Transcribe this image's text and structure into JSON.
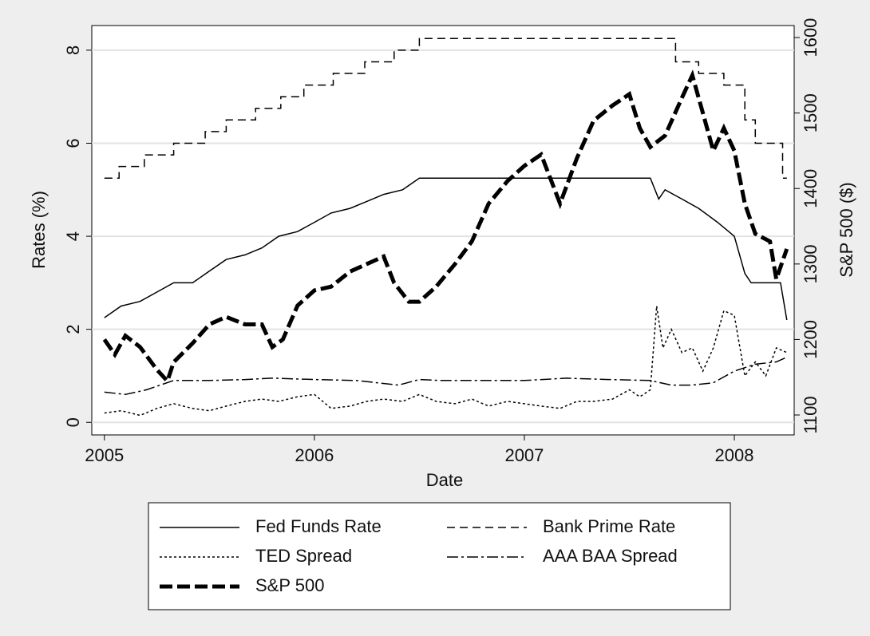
{
  "chart_data": {
    "type": "line",
    "x_label": "Date",
    "y_label": "Rates (%)",
    "y2_label": "S&P 500 ($)",
    "xlim": [
      2004.94,
      2008.285
    ],
    "xticks": [
      2005,
      2006,
      2007,
      2008
    ],
    "ylim": [
      -0.27,
      8.53
    ],
    "yticks": [
      0,
      2,
      4,
      6,
      8
    ],
    "y2lim": [
      1073.6,
      1615.9
    ],
    "y2ticks": [
      1100,
      1200,
      1300,
      1400,
      1500,
      1600
    ],
    "grid": true,
    "series": [
      {
        "name": "Fed Funds Rate",
        "color": "#000000",
        "style": "solid",
        "width": 1.5,
        "x": [
          2005.0,
          2005.08,
          2005.17,
          2005.25,
          2005.33,
          2005.42,
          2005.5,
          2005.58,
          2005.67,
          2005.75,
          2005.83,
          2005.92,
          2006.0,
          2006.08,
          2006.17,
          2006.25,
          2006.33,
          2006.42,
          2006.5,
          2006.67,
          2006.83,
          2007.0,
          2007.17,
          2007.33,
          2007.5,
          2007.6,
          2007.64,
          2007.67,
          2007.75,
          2007.83,
          2007.92,
          2008.0,
          2008.05,
          2008.08,
          2008.17,
          2008.22,
          2008.25
        ],
        "values": [
          2.25,
          2.5,
          2.6,
          2.8,
          3.0,
          3.0,
          3.25,
          3.5,
          3.6,
          3.75,
          4.0,
          4.1,
          4.3,
          4.5,
          4.6,
          4.75,
          4.9,
          5.0,
          5.25,
          5.25,
          5.25,
          5.25,
          5.25,
          5.25,
          5.25,
          5.25,
          4.8,
          5.0,
          4.8,
          4.6,
          4.3,
          4.0,
          3.2,
          3.0,
          3.0,
          3.0,
          2.2
        ]
      },
      {
        "name": "Bank Prime Rate",
        "color": "#000000",
        "style": "dash",
        "width": 1.5,
        "x": [
          2005.0,
          2005.07,
          2005.07,
          2005.19,
          2005.19,
          2005.33,
          2005.33,
          2005.48,
          2005.48,
          2005.58,
          2005.58,
          2005.72,
          2005.72,
          2005.84,
          2005.84,
          2005.95,
          2005.95,
          2006.09,
          2006.09,
          2006.24,
          2006.24,
          2006.38,
          2006.38,
          2006.5,
          2006.5,
          2007.72,
          2007.72,
          2007.83,
          2007.83,
          2007.95,
          2007.95,
          2008.05,
          2008.05,
          2008.1,
          2008.1,
          2008.23,
          2008.23,
          2008.25
        ],
        "values": [
          5.25,
          5.25,
          5.5,
          5.5,
          5.75,
          5.75,
          6.0,
          6.0,
          6.25,
          6.25,
          6.5,
          6.5,
          6.75,
          6.75,
          7.0,
          7.0,
          7.25,
          7.25,
          7.5,
          7.5,
          7.75,
          7.75,
          8.0,
          8.0,
          8.25,
          8.25,
          7.75,
          7.75,
          7.5,
          7.5,
          7.25,
          7.25,
          6.5,
          6.5,
          6.0,
          6.0,
          5.25,
          5.25
        ]
      },
      {
        "name": "TED Spread",
        "color": "#000000",
        "style": "dot",
        "width": 1.5,
        "x": [
          2005.0,
          2005.08,
          2005.17,
          2005.25,
          2005.33,
          2005.42,
          2005.5,
          2005.58,
          2005.67,
          2005.75,
          2005.83,
          2005.92,
          2006.0,
          2006.08,
          2006.17,
          2006.25,
          2006.33,
          2006.42,
          2006.5,
          2006.58,
          2006.67,
          2006.75,
          2006.83,
          2006.92,
          2007.0,
          2007.08,
          2007.17,
          2007.25,
          2007.33,
          2007.42,
          2007.5,
          2007.55,
          2007.6,
          2007.63,
          2007.66,
          2007.7,
          2007.75,
          2007.8,
          2007.85,
          2007.9,
          2007.95,
          2008.0,
          2008.05,
          2008.1,
          2008.15,
          2008.2,
          2008.25
        ],
        "values": [
          0.2,
          0.25,
          0.15,
          0.3,
          0.4,
          0.3,
          0.25,
          0.35,
          0.45,
          0.5,
          0.45,
          0.55,
          0.6,
          0.3,
          0.35,
          0.45,
          0.5,
          0.45,
          0.6,
          0.45,
          0.4,
          0.5,
          0.35,
          0.45,
          0.4,
          0.35,
          0.3,
          0.45,
          0.45,
          0.5,
          0.7,
          0.55,
          0.7,
          2.5,
          1.6,
          2.0,
          1.5,
          1.6,
          1.1,
          1.6,
          2.4,
          2.3,
          1.0,
          1.3,
          1.0,
          1.6,
          1.5
        ]
      },
      {
        "name": "AAA BAA  Spread",
        "color": "#000000",
        "style": "dash-dot",
        "width": 1.5,
        "x": [
          2005.0,
          2005.1,
          2005.2,
          2005.33,
          2005.5,
          2005.67,
          2005.8,
          2006.0,
          2006.2,
          2006.4,
          2006.5,
          2006.6,
          2006.8,
          2007.0,
          2007.2,
          2007.4,
          2007.6,
          2007.7,
          2007.8,
          2007.9,
          2008.0,
          2008.1,
          2008.2,
          2008.25
        ],
        "values": [
          0.65,
          0.6,
          0.7,
          0.9,
          0.9,
          0.92,
          0.95,
          0.92,
          0.9,
          0.8,
          0.92,
          0.9,
          0.9,
          0.9,
          0.95,
          0.92,
          0.9,
          0.8,
          0.8,
          0.85,
          1.1,
          1.25,
          1.3,
          1.4
        ]
      },
      {
        "name": "S&P 500",
        "color": "#000000",
        "style": "long-dash",
        "width": 5,
        "axis": "y2",
        "x": [
          2005.0,
          2005.05,
          2005.1,
          2005.17,
          2005.25,
          2005.3,
          2005.33,
          2005.42,
          2005.5,
          2005.58,
          2005.67,
          2005.75,
          2005.8,
          2005.85,
          2005.92,
          2006.0,
          2006.08,
          2006.17,
          2006.25,
          2006.33,
          2006.38,
          2006.45,
          2006.5,
          2006.58,
          2006.67,
          2006.75,
          2006.83,
          2006.92,
          2007.0,
          2007.08,
          2007.17,
          2007.25,
          2007.33,
          2007.42,
          2007.5,
          2007.55,
          2007.6,
          2007.67,
          2007.75,
          2007.8,
          2007.85,
          2007.9,
          2007.95,
          2008.0,
          2008.05,
          2008.1,
          2008.17,
          2008.2,
          2008.25
        ],
        "values": [
          1200,
          1180,
          1205,
          1190,
          1160,
          1145,
          1170,
          1195,
          1220,
          1230,
          1220,
          1220,
          1190,
          1200,
          1245,
          1265,
          1270,
          1290,
          1300,
          1310,
          1275,
          1250,
          1250,
          1270,
          1300,
          1330,
          1380,
          1410,
          1430,
          1445,
          1380,
          1440,
          1490,
          1510,
          1525,
          1480,
          1455,
          1470,
          1520,
          1550,
          1500,
          1450,
          1480,
          1450,
          1380,
          1340,
          1330,
          1280,
          1320
        ]
      }
    ],
    "legend": "bottom"
  }
}
